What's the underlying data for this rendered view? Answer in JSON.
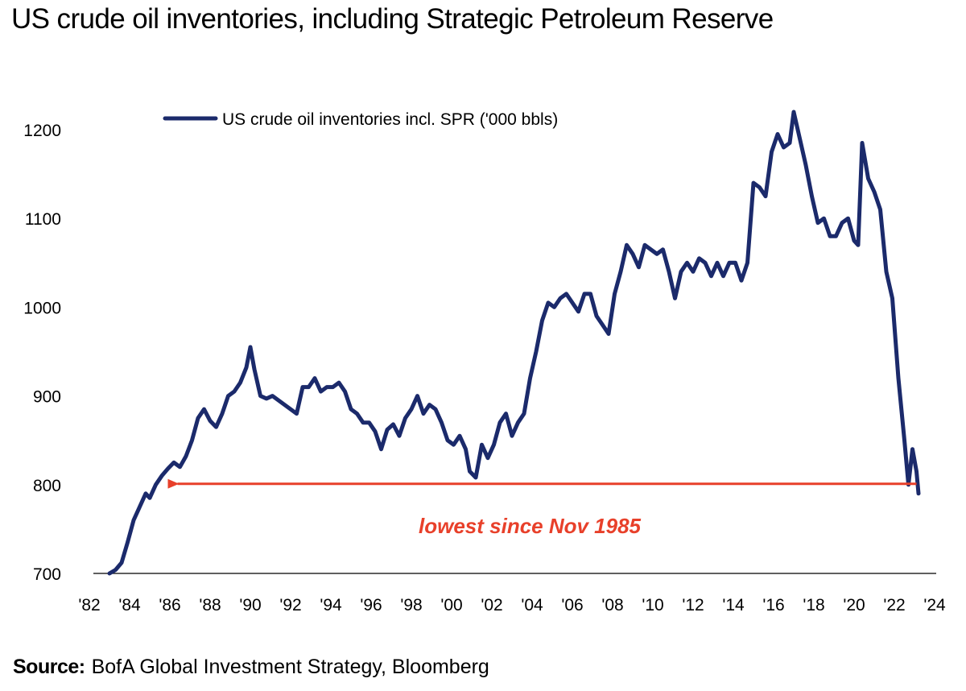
{
  "chart_data": {
    "type": "line",
    "title": "US crude oil inventories, including Strategic Petroleum Reserve",
    "xlabel": "",
    "ylabel": "",
    "xlim": [
      1982,
      2024
    ],
    "ylim": [
      700,
      1200
    ],
    "x_ticks": [
      "'82",
      "'84",
      "'86",
      "'88",
      "'90",
      "'92",
      "'94",
      "'96",
      "'98",
      "'00",
      "'02",
      "'04",
      "'06",
      "'08",
      "'10",
      "'12",
      "'14",
      "'16",
      "'18",
      "'20",
      "'22",
      "'24"
    ],
    "y_ticks": [
      700,
      800,
      900,
      1000,
      1100,
      1200
    ],
    "grid": false,
    "legend": "top-left",
    "series": [
      {
        "name": "US crude oil inventories incl. SPR ('000 bbls)",
        "color": "#1b2a6b",
        "x": [
          1983.0,
          1983.3,
          1983.6,
          1983.9,
          1984.2,
          1984.5,
          1984.8,
          1985.0,
          1985.3,
          1985.6,
          1985.9,
          1986.2,
          1986.5,
          1986.8,
          1987.1,
          1987.4,
          1987.7,
          1988.0,
          1988.3,
          1988.6,
          1988.9,
          1989.2,
          1989.5,
          1989.8,
          1990.0,
          1990.2,
          1990.5,
          1990.8,
          1991.1,
          1991.4,
          1991.7,
          1992.0,
          1992.3,
          1992.6,
          1992.9,
          1993.2,
          1993.5,
          1993.8,
          1994.1,
          1994.4,
          1994.7,
          1995.0,
          1995.3,
          1995.6,
          1995.9,
          1996.2,
          1996.5,
          1996.8,
          1997.1,
          1997.4,
          1997.7,
          1998.0,
          1998.3,
          1998.6,
          1998.9,
          1999.2,
          1999.5,
          1999.8,
          2000.1,
          2000.4,
          2000.7,
          2000.9,
          2001.2,
          2001.5,
          2001.8,
          2002.1,
          2002.4,
          2002.7,
          2003.0,
          2003.3,
          2003.6,
          2003.9,
          2004.2,
          2004.5,
          2004.8,
          2005.1,
          2005.4,
          2005.7,
          2006.0,
          2006.3,
          2006.6,
          2006.9,
          2007.2,
          2007.5,
          2007.8,
          2008.1,
          2008.4,
          2008.7,
          2009.0,
          2009.3,
          2009.6,
          2009.9,
          2010.2,
          2010.5,
          2010.8,
          2011.1,
          2011.4,
          2011.7,
          2012.0,
          2012.3,
          2012.6,
          2012.9,
          2013.2,
          2013.5,
          2013.8,
          2014.1,
          2014.4,
          2014.7,
          2015.0,
          2015.3,
          2015.6,
          2015.9,
          2016.2,
          2016.5,
          2016.8,
          2017.0,
          2017.3,
          2017.6,
          2017.9,
          2018.2,
          2018.5,
          2018.8,
          2019.1,
          2019.4,
          2019.7,
          2020.0,
          2020.2,
          2020.4,
          2020.7,
          2021.0,
          2021.3,
          2021.6,
          2021.9,
          2022.2,
          2022.5,
          2022.7,
          2022.9,
          2023.1,
          2023.2
        ],
        "values": [
          700,
          704,
          712,
          735,
          760,
          775,
          790,
          785,
          800,
          810,
          818,
          825,
          820,
          832,
          850,
          875,
          885,
          872,
          865,
          880,
          900,
          905,
          915,
          932,
          955,
          930,
          900,
          897,
          900,
          895,
          890,
          885,
          880,
          910,
          910,
          920,
          905,
          910,
          910,
          915,
          905,
          885,
          880,
          870,
          870,
          860,
          840,
          862,
          868,
          855,
          875,
          885,
          900,
          880,
          890,
          885,
          870,
          850,
          845,
          855,
          840,
          815,
          808,
          845,
          830,
          845,
          870,
          880,
          855,
          870,
          880,
          920,
          950,
          985,
          1005,
          1000,
          1010,
          1015,
          1005,
          995,
          1015,
          1015,
          990,
          980,
          970,
          1015,
          1040,
          1070,
          1060,
          1045,
          1070,
          1065,
          1060,
          1065,
          1040,
          1010,
          1040,
          1050,
          1040,
          1055,
          1050,
          1035,
          1050,
          1035,
          1050,
          1050,
          1030,
          1050,
          1140,
          1135,
          1125,
          1175,
          1195,
          1180,
          1185,
          1220,
          1190,
          1160,
          1125,
          1095,
          1100,
          1080,
          1080,
          1095,
          1100,
          1075,
          1070,
          1185,
          1145,
          1130,
          1110,
          1040,
          1010,
          920,
          850,
          800,
          840,
          815,
          790
        ]
      }
    ],
    "annotations": [
      {
        "text": "lowest since Nov 1985",
        "arrow_from_x": 2023.1,
        "arrow_to_x": 1985.9,
        "arrow_y": 801,
        "color": "#e8402a"
      }
    ],
    "source_label": "Source:",
    "source_text": "BofA Global Investment Strategy, Bloomberg"
  }
}
